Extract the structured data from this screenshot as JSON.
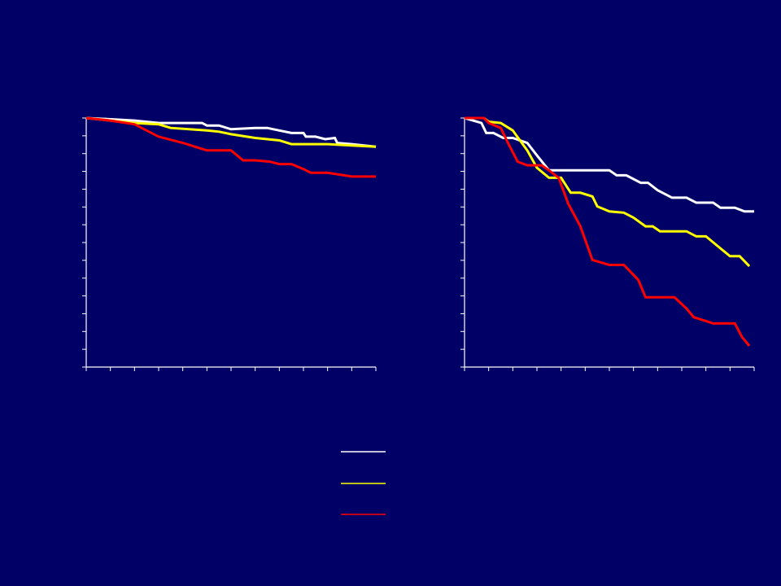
{
  "colors": {
    "background": "#000066",
    "axis": "#ffffff",
    "series": [
      "#ffffff",
      "#ffff00",
      "#ff0000"
    ]
  },
  "chart_data": [
    {
      "type": "line",
      "title": "",
      "xlabel": "",
      "ylabel": "",
      "xlim": [
        0,
        12
      ],
      "ylim": [
        0,
        1
      ],
      "x_ticks": 12,
      "y_ticks": 14,
      "grid": false,
      "legend": "bottom-center",
      "series": [
        {
          "color": "#ffffff",
          "step": false,
          "points": [
            [
              0,
              1
            ],
            [
              1,
              0.995
            ],
            [
              2,
              0.99
            ],
            [
              3,
              0.98
            ],
            [
              4,
              0.98
            ],
            [
              4.8,
              0.98
            ],
            [
              5,
              0.97
            ],
            [
              5.5,
              0.97
            ],
            [
              6,
              0.955
            ],
            [
              7,
              0.96
            ],
            [
              7.5,
              0.96
            ],
            [
              8,
              0.95
            ],
            [
              8.5,
              0.94
            ],
            [
              9,
              0.94
            ],
            [
              9.1,
              0.925
            ],
            [
              9.5,
              0.925
            ],
            [
              9.9,
              0.915
            ],
            [
              10.3,
              0.92
            ],
            [
              10.4,
              0.9
            ],
            [
              11,
              0.895
            ],
            [
              12,
              0.885
            ]
          ]
        },
        {
          "color": "#ffff00",
          "step": false,
          "points": [
            [
              0,
              1
            ],
            [
              1,
              0.99
            ],
            [
              2,
              0.98
            ],
            [
              3,
              0.975
            ],
            [
              3.5,
              0.96
            ],
            [
              5,
              0.95
            ],
            [
              5.5,
              0.945
            ],
            [
              6,
              0.935
            ],
            [
              7,
              0.92
            ],
            [
              8,
              0.91
            ],
            [
              8.5,
              0.895
            ],
            [
              9,
              0.895
            ],
            [
              10,
              0.895
            ],
            [
              11,
              0.89
            ],
            [
              12,
              0.885
            ]
          ]
        },
        {
          "color": "#ff0000",
          "step": false,
          "points": [
            [
              0,
              1
            ],
            [
              1,
              0.99
            ],
            [
              2,
              0.975
            ],
            [
              3,
              0.925
            ],
            [
              4,
              0.9
            ],
            [
              5,
              0.87
            ],
            [
              5.3,
              0.87
            ],
            [
              6,
              0.87
            ],
            [
              6.5,
              0.83
            ],
            [
              7,
              0.83
            ],
            [
              7.6,
              0.825
            ],
            [
              8,
              0.815
            ],
            [
              8.5,
              0.815
            ],
            [
              9,
              0.795
            ],
            [
              9.3,
              0.78
            ],
            [
              10,
              0.78
            ],
            [
              11,
              0.765
            ],
            [
              12,
              0.765
            ]
          ]
        }
      ]
    },
    {
      "type": "line",
      "title": "",
      "xlabel": "",
      "ylabel": "",
      "xlim": [
        0,
        12
      ],
      "ylim": [
        0,
        1
      ],
      "x_ticks": 12,
      "y_ticks": 14,
      "grid": false,
      "legend": "bottom-center",
      "series": [
        {
          "color": "#ffffff",
          "step": false,
          "points": [
            [
              0,
              1
            ],
            [
              0.7,
              0.98
            ],
            [
              0.9,
              0.94
            ],
            [
              1.2,
              0.94
            ],
            [
              1.6,
              0.92
            ],
            [
              2,
              0.92
            ],
            [
              2.6,
              0.9
            ],
            [
              3,
              0.85
            ],
            [
              3.5,
              0.79
            ],
            [
              5.4,
              0.79
            ],
            [
              6,
              0.79
            ],
            [
              6.3,
              0.77
            ],
            [
              6.7,
              0.77
            ],
            [
              7.3,
              0.74
            ],
            [
              7.6,
              0.74
            ],
            [
              8,
              0.71
            ],
            [
              8.6,
              0.68
            ],
            [
              9.2,
              0.68
            ],
            [
              9.6,
              0.66
            ],
            [
              10.3,
              0.66
            ],
            [
              10.6,
              0.64
            ],
            [
              11.2,
              0.64
            ],
            [
              11.6,
              0.625
            ],
            [
              12,
              0.625
            ]
          ]
        },
        {
          "color": "#ffff00",
          "step": false,
          "points": [
            [
              0,
              1
            ],
            [
              0.8,
              1
            ],
            [
              1,
              0.985
            ],
            [
              1.5,
              0.98
            ],
            [
              2,
              0.95
            ],
            [
              2.6,
              0.87
            ],
            [
              3,
              0.8
            ],
            [
              3.5,
              0.76
            ],
            [
              4,
              0.76
            ],
            [
              4.4,
              0.7
            ],
            [
              4.8,
              0.7
            ],
            [
              5.3,
              0.685
            ],
            [
              5.5,
              0.645
            ],
            [
              6,
              0.625
            ],
            [
              6.6,
              0.62
            ],
            [
              7,
              0.6
            ],
            [
              7.5,
              0.565
            ],
            [
              7.8,
              0.565
            ],
            [
              8.1,
              0.545
            ],
            [
              9.2,
              0.545
            ],
            [
              9.6,
              0.525
            ],
            [
              10,
              0.525
            ],
            [
              10.5,
              0.485
            ],
            [
              11,
              0.445
            ],
            [
              11.4,
              0.445
            ],
            [
              11.8,
              0.405
            ]
          ]
        },
        {
          "color": "#ff0000",
          "step": false,
          "points": [
            [
              0,
              1
            ],
            [
              0.8,
              1
            ],
            [
              1,
              0.98
            ],
            [
              1.5,
              0.96
            ],
            [
              1.8,
              0.9
            ],
            [
              2.2,
              0.825
            ],
            [
              2.6,
              0.81
            ],
            [
              3.2,
              0.81
            ],
            [
              3.5,
              0.79
            ],
            [
              3.9,
              0.76
            ],
            [
              4.3,
              0.655
            ],
            [
              4.8,
              0.565
            ],
            [
              5.3,
              0.43
            ],
            [
              6,
              0.41
            ],
            [
              6.6,
              0.41
            ],
            [
              7.2,
              0.35
            ],
            [
              7.5,
              0.28
            ],
            [
              8.7,
              0.28
            ],
            [
              9.2,
              0.235
            ],
            [
              9.5,
              0.2
            ],
            [
              10,
              0.185
            ],
            [
              10.3,
              0.175
            ],
            [
              11.2,
              0.175
            ],
            [
              11.5,
              0.12
            ],
            [
              11.8,
              0.085
            ]
          ]
        }
      ]
    }
  ]
}
